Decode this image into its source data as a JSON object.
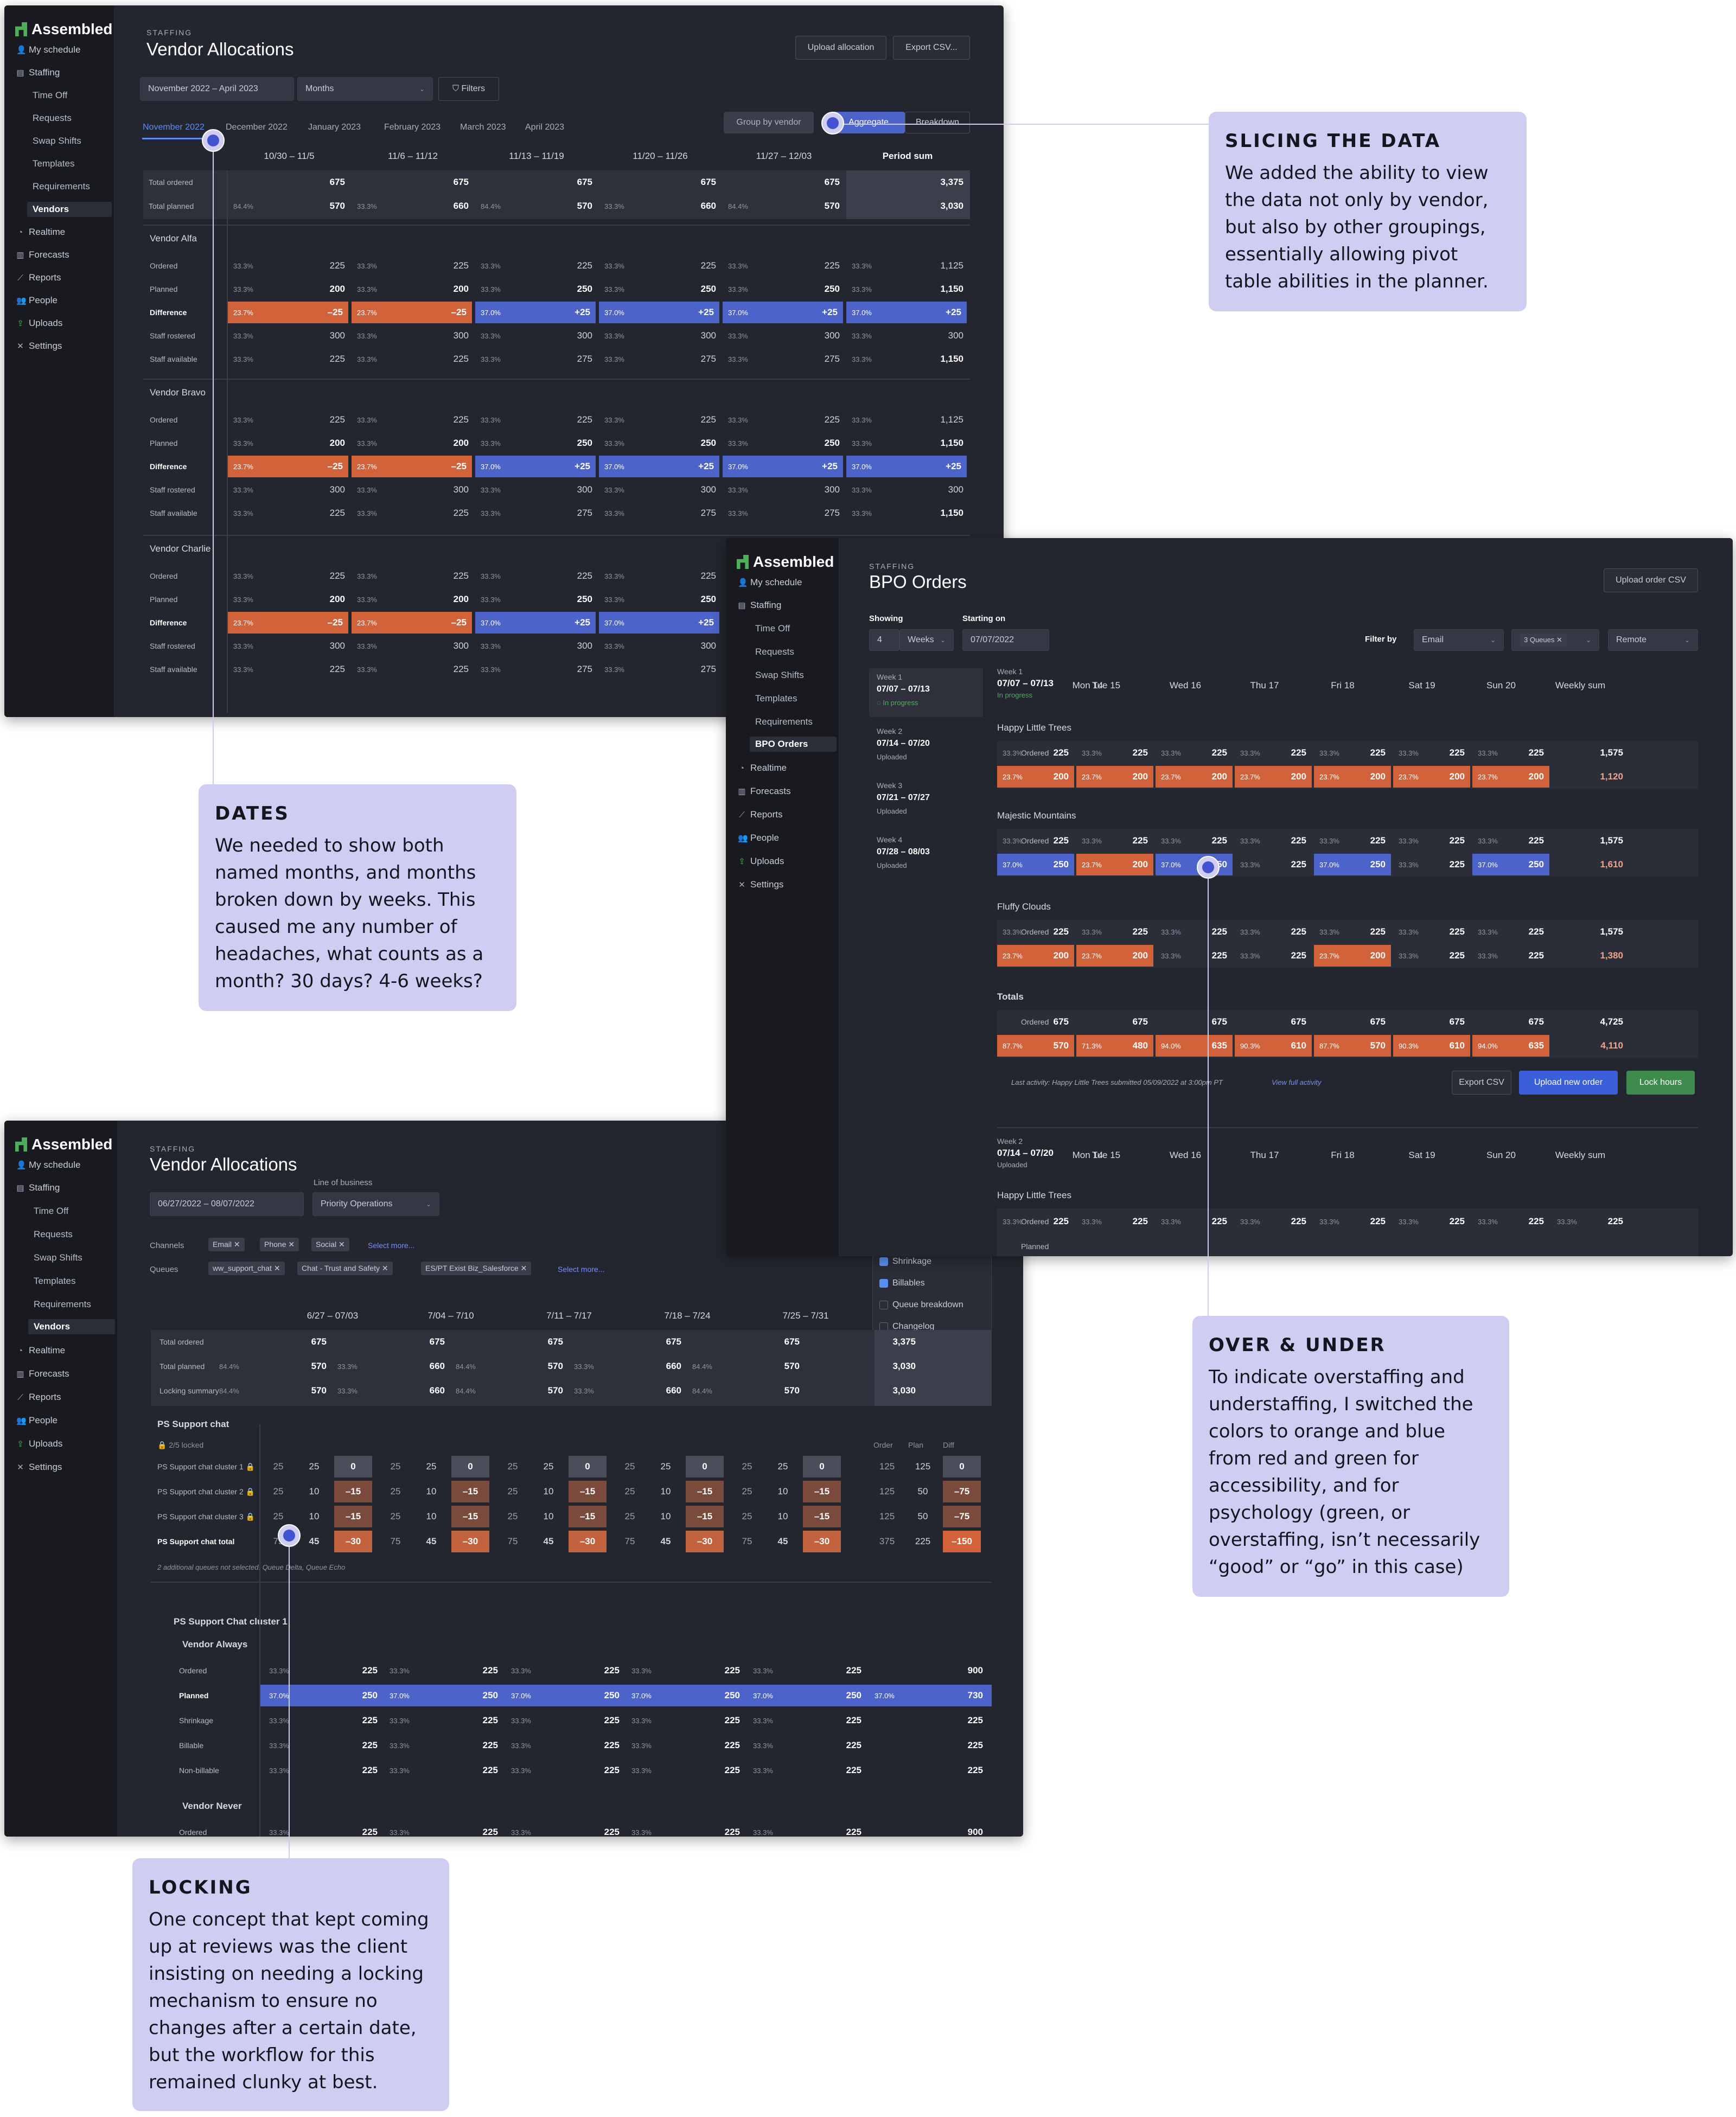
{
  "brand": "Assembled",
  "sidebar": {
    "items": [
      "My schedule",
      "Staffing",
      "Time Off",
      "Requests",
      "Swap Shifts",
      "Templates",
      "Requirements",
      "Vendors",
      "Realtime",
      "Forecasts",
      "Reports",
      "People",
      "Uploads",
      "Settings"
    ],
    "bpo_items": [
      "My schedule",
      "Staffing",
      "Time Off",
      "Requests",
      "Swap Shifts",
      "Templates",
      "Requirements",
      "BPO Orders",
      "Realtime",
      "Forecasts",
      "Reports",
      "People",
      "Uploads",
      "Settings"
    ]
  },
  "win1": {
    "crumb": "STAFFING",
    "title": "Vendor Allocations",
    "upload": "Upload allocation",
    "export": "Export CSV...",
    "range": "November 2022 – April 2023",
    "unit": "Months",
    "filters": "Filters",
    "months": [
      "November 2022",
      "December 2022",
      "January 2023",
      "February 2023",
      "March 2023",
      "April 2023"
    ],
    "group_label": "Group by vendor",
    "aggregate": "Aggregate",
    "breakdown": "Breakdown",
    "weeks": [
      "10/30 – 11/5",
      "11/6 – 11/12",
      "11/13 – 11/19",
      "11/20 – 11/26",
      "11/27 – 12/03",
      "Period sum"
    ],
    "total_ordered": "Total ordered",
    "total_planned": "Total planned",
    "vendors": [
      "Vendor Alfa",
      "Vendor Bravo",
      "Vendor Charlie"
    ],
    "rows": [
      "Ordered",
      "Planned",
      "Difference",
      "Staff rostered",
      "Staff available"
    ]
  },
  "win2": {
    "crumb": "STAFFING",
    "title": "BPO Orders",
    "upload": "Upload order CSV",
    "showing": "Showing",
    "showing_n": "4",
    "weeks_unit": "Weeks",
    "starting_on": "Starting on",
    "start_date": "07/07/2022",
    "filter_by": "Filter by",
    "email": "Email",
    "queues": "3 Queues",
    "remote": "Remote",
    "week_list": [
      {
        "w": "Week 1",
        "d": "07/07 – 07/13",
        "s": "In progress"
      },
      {
        "w": "Week 2",
        "d": "07/14 – 07/20",
        "s": "Uploaded"
      },
      {
        "w": "Week 3",
        "d": "07/21 – 07/27",
        "s": "Uploaded"
      },
      {
        "w": "Week 4",
        "d": "07/28 – 08/03",
        "s": "Uploaded"
      }
    ],
    "days": [
      "Mon 14",
      "Tue 15",
      "Wed 16",
      "Thu 17",
      "Fri 18",
      "Sat 19",
      "Sun 20",
      "Weekly sum"
    ],
    "groups": [
      "Happy Little Trees",
      "Majestic Mountains",
      "Fluffy Clouds",
      "Totals"
    ],
    "ordered": "Ordered",
    "planned": "Planned",
    "activity": "Last activity: Happy Little Trees submitted 05/09/2022 at 3:00pm PT",
    "view_full": "View full activity",
    "export": "Export CSV",
    "upload_new": "Upload new order",
    "lock": "Lock hours"
  },
  "win3": {
    "crumb": "STAFFING",
    "title": "Vendor Allocations",
    "lob_label": "Line of business",
    "range": "06/27/2022 – 08/07/2022",
    "lob": "Priority Operations",
    "channels": "Channels",
    "queues": "Queues",
    "chips1": [
      "Email",
      "Phone",
      "Social"
    ],
    "chips2": [
      "ww_support_chat",
      "Chat - Trust and Safety",
      "ES/PT Exist Biz_Salesforce"
    ],
    "select_more": "Select more...",
    "menu": [
      "Shrinkage",
      "Billables",
      "Queue breakdown",
      "Changelog"
    ],
    "weeks": [
      "6/27 – 07/03",
      "7/04 – 7/10",
      "7/11 – 7/17",
      "7/18 – 7/24",
      "7/25 – 7/31"
    ],
    "summary": [
      "Total ordered",
      "Total planned",
      "Locking summary"
    ],
    "ps": "PS Support chat",
    "locked": "2/5 locked",
    "odp": [
      "Order",
      "Plan",
      "Diff"
    ],
    "clusters": [
      "PS Support chat cluster 1",
      "PS Support chat cluster 2",
      "PS Support chat cluster 3",
      "PS Support chat total"
    ],
    "note": "2 additional queues not selected: Queue Delta, Queue Echo",
    "cluster_title": "PS Support Chat cluster 1",
    "vendor_always": "Vendor Always",
    "vendor_never": "Vendor Never",
    "vrows": [
      "Ordered",
      "Planned",
      "Shrinkage",
      "Billable",
      "Non-billable"
    ]
  },
  "cards": {
    "slicing": {
      "title": "SLICING THE DATA",
      "body": "We added the ability to view the data not only by vendor, but also by other groupings, essentially allowing pivot table abilities in the planner."
    },
    "dates": {
      "title": "DATES",
      "body": "We needed to show both named months, and months broken down by weeks. This caused me any number of headaches, what counts as a month? 30 days? 4-6 weeks?"
    },
    "over": {
      "title": "OVER & UNDER",
      "body": "To indicate overstaffing and understaffing, I switched the colors to orange and blue from red and green for accessibility, and for psychology (green, or overstaffing, isn’t necessarily “good” or “go” in this case)"
    },
    "locking": {
      "title": "LOCKING",
      "body": "One concept that kept coming up at reviews was the client insisting on needing a locking mechanism to ensure no changes after a certain date, but the workflow for this remained clunky at best."
    }
  },
  "colors": {
    "under": "#d2623a",
    "over": "#4c63c9",
    "card": "#d0cdf2",
    "bg": "#24262f"
  }
}
